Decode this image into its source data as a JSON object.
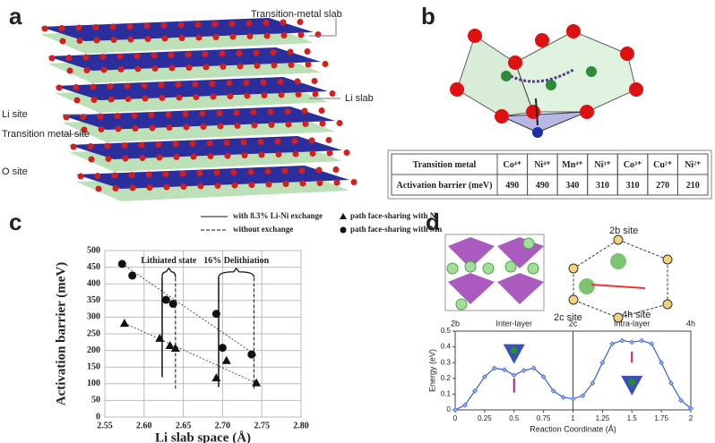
{
  "panel_labels": [
    "a",
    "b",
    "c",
    "d"
  ],
  "panel_a": {
    "labels": [
      "Transition-metal slab",
      "Li slab",
      "Li site",
      "Transition metal site",
      "O site"
    ]
  },
  "panel_b": {
    "table": {
      "rows": [
        [
          "Transition metal",
          "Co⁴⁺",
          "Ni⁴⁺",
          "Mn⁴⁺",
          "Ni³⁺",
          "Co³⁺",
          "Cu²⁺",
          "Ni²⁺"
        ],
        [
          "Activation barrier (meV)",
          "490",
          "490",
          "340",
          "310",
          "310",
          "270",
          "210"
        ]
      ]
    }
  },
  "panel_d": {
    "labels": [
      "2b site",
      "2c site",
      "4h site"
    ]
  },
  "chart_data": [
    {
      "type": "scatter",
      "xlabel": "Li slab space (Å)",
      "ylabel": "Activation barrier (meV)",
      "xlim": [
        2.55,
        2.8
      ],
      "xticks": [
        2.55,
        {
          "value": 2.6,
          "label": "2.60"
        },
        2.65,
        {
          "value": 2.7,
          "label": "2.70"
        },
        2.75,
        {
          "value": 2.8,
          "label": "2.80"
        }
      ],
      "ylim": [
        0,
        500
      ],
      "yticks": [
        0,
        50,
        100,
        150,
        200,
        250,
        300,
        350,
        400,
        450,
        500
      ],
      "series": [
        {
          "name": "path face-sharing with Ni",
          "marker": "triangle",
          "color": "#111111",
          "x": [
            2.575,
            2.62,
            2.633,
            2.64,
            2.692,
            2.705,
            2.743
          ],
          "values": [
            282,
            237,
            215,
            207,
            118,
            170,
            103
          ]
        },
        {
          "name": "path face-sharing with Mn",
          "marker": "circle",
          "color": "#111111",
          "x": [
            2.572,
            2.585,
            2.628,
            2.637,
            2.692,
            2.7,
            2.737
          ],
          "values": [
            460,
            425,
            352,
            340,
            310,
            208,
            188
          ]
        }
      ],
      "trendlines": [
        {
          "x": [
            2.572,
            2.743
          ],
          "values": [
            460,
            185
          ]
        },
        {
          "x": [
            2.575,
            2.745
          ],
          "values": [
            282,
            100
          ]
        }
      ],
      "legend_lines": [
        {
          "name": "with 8.3% Li-Ni exchange",
          "style": "solid"
        },
        {
          "name": "without exchange",
          "style": "dashed"
        }
      ],
      "reference_lines": [
        {
          "x": 2.623,
          "values": [
            120,
            420
          ],
          "style": "solid"
        },
        {
          "x": 2.64,
          "values": [
            85,
            420
          ],
          "style": "dashed"
        },
        {
          "x": 2.695,
          "values": [
            90,
            420
          ],
          "style": "solid"
        },
        {
          "x": 2.74,
          "values": [
            85,
            420
          ],
          "style": "dashed"
        }
      ],
      "annotations": [
        "Lithiated state",
        "16% Delithiation"
      ]
    },
    {
      "type": "line",
      "xlabel": "Reaction Coordinate (Å)",
      "ylabel": "Energy (eV)",
      "xlim": [
        0,
        2
      ],
      "xticks": [
        0,
        0.25,
        0.5,
        0.75,
        1,
        1.25,
        1.5,
        1.75,
        2
      ],
      "ylim": [
        0,
        0.5
      ],
      "yticks": [
        0,
        0.1,
        0.2,
        0.3,
        0.4,
        0.5
      ],
      "top_labels": [
        "2b",
        "Inter-layer",
        "2c",
        "Intra-layer",
        "4h"
      ],
      "divider_x": 1,
      "series": [
        {
          "color": "#3a5fc8",
          "x": [
            0,
            0.083,
            0.167,
            0.25,
            0.333,
            0.417,
            0.5,
            0.583,
            0.667,
            0.75,
            0.833,
            0.917,
            1,
            1.083,
            1.167,
            1.25,
            1.333,
            1.417,
            1.5,
            1.583,
            1.667,
            1.75,
            1.833,
            1.917,
            2
          ],
          "values": [
            0,
            0.03,
            0.12,
            0.21,
            0.265,
            0.255,
            0.22,
            0.25,
            0.265,
            0.21,
            0.12,
            0.08,
            0.07,
            0.09,
            0.17,
            0.3,
            0.42,
            0.44,
            0.43,
            0.44,
            0.42,
            0.3,
            0.17,
            0.06,
            0.01
          ]
        }
      ]
    }
  ]
}
